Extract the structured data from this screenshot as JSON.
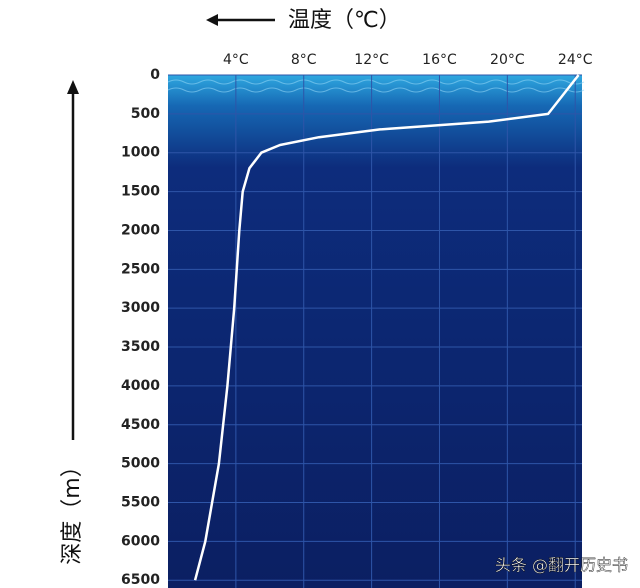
{
  "chart_data": {
    "type": "line",
    "x_label": "温度（℃）",
    "y_label": "深度（m）",
    "watermark": "头条 @翻开历史书",
    "xlim": [
      0,
      24.4
    ],
    "ylim": [
      0,
      6600
    ],
    "inverted_y": true,
    "grid": true,
    "xticks": [
      {
        "value": 4,
        "label": "4°C"
      },
      {
        "value": 8,
        "label": "8°C"
      },
      {
        "value": 12,
        "label": "12°C"
      },
      {
        "value": 16,
        "label": "16°C"
      },
      {
        "value": 20,
        "label": "20°C"
      },
      {
        "value": 24,
        "label": "24°C"
      }
    ],
    "yticks": [
      0,
      500,
      1000,
      1500,
      2000,
      2500,
      3000,
      3500,
      4000,
      4500,
      5000,
      5500,
      6000,
      6500
    ],
    "series": [
      {
        "color": "#ffffff",
        "x": [
          24.2,
          22.4,
          18.9,
          12.5,
          8.9,
          6.6,
          5.5,
          4.8,
          4.4,
          4.2,
          3.9,
          3.5,
          3.0,
          2.2,
          1.6
        ],
        "y": [
          0,
          500,
          600,
          700,
          800,
          900,
          1000,
          1200,
          1500,
          2000,
          3000,
          4000,
          5000,
          6000,
          6500
        ]
      }
    ]
  }
}
